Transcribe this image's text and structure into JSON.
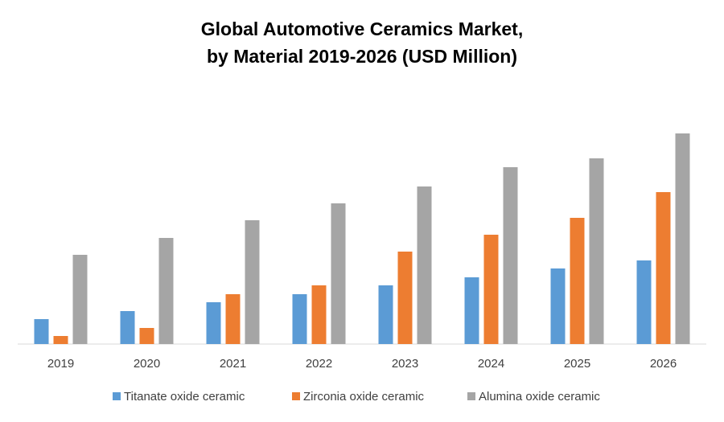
{
  "chart_data": {
    "type": "bar",
    "title": [
      "Global Automotive Ceramics Market,",
      "by Material 2019-2026 (USD Million)"
    ],
    "categories": [
      "2019",
      "2020",
      "2021",
      "2022",
      "2023",
      "2024",
      "2025",
      "2026"
    ],
    "series": [
      {
        "name": "Titanate oxide ceramic",
        "color": "#5b9bd5",
        "values": [
          31,
          41,
          52,
          62,
          73,
          83,
          94,
          104
        ]
      },
      {
        "name": "Zirconia oxide ceramic",
        "color": "#ed7d31",
        "values": [
          10,
          20,
          62,
          73,
          115,
          136,
          157,
          189
        ]
      },
      {
        "name": "Alumina oxide ceramic",
        "color": "#a5a5a5",
        "values": [
          111,
          132,
          154,
          175,
          196,
          220,
          231,
          262
        ]
      }
    ],
    "legend": "bottom"
  }
}
